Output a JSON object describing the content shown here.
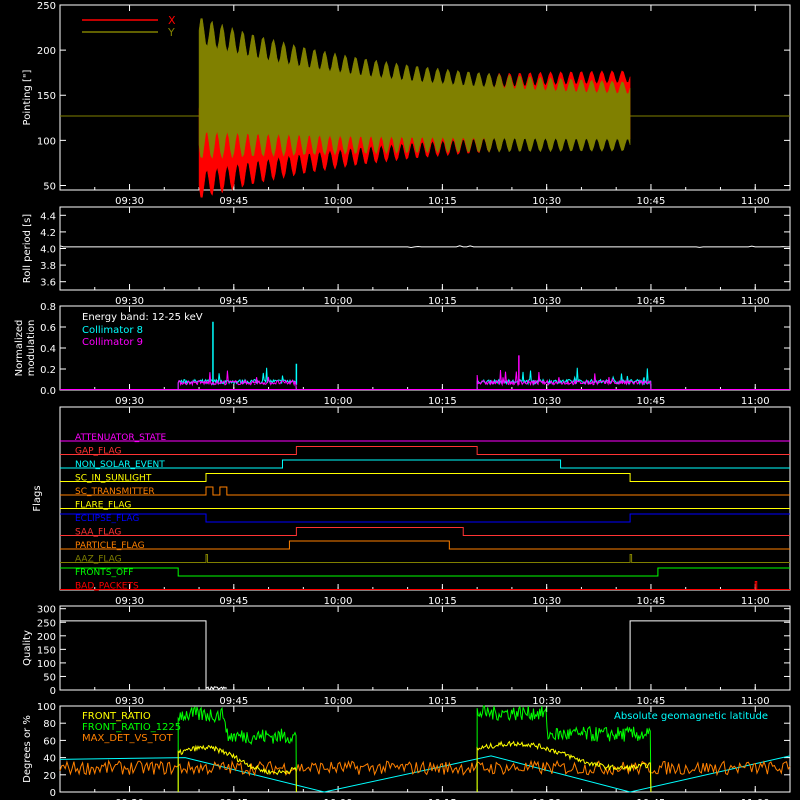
{
  "colors": {
    "background": "#000000",
    "frame": "#ffffff",
    "x_pointing": "#ff0000",
    "y_pointing": "#808000",
    "coll8": "#00ffff",
    "coll9": "#ff00ff"
  },
  "time_axis": {
    "range": [
      "09:20",
      "11:05"
    ],
    "tick_labels": [
      "09:30",
      "09:45",
      "10:00",
      "10:15",
      "10:30",
      "10:45",
      "11:00"
    ],
    "tick_values": [
      "09:30",
      "09:45",
      "10:00",
      "10:15",
      "10:30",
      "10:45",
      "11:00"
    ]
  },
  "chart_data": [
    {
      "id": "pointing",
      "type": "line",
      "ylabel": "Pointing [\"]",
      "ylim": [
        45,
        250
      ],
      "yticks": [
        "50",
        "100",
        "150",
        "200",
        "250"
      ],
      "ytick_values": [
        50,
        100,
        150,
        200,
        250
      ],
      "legend": [
        {
          "name": "X",
          "color": "#ff0000"
        },
        {
          "name": "Y",
          "color": "#808000"
        }
      ],
      "baseline": {
        "value": 127,
        "color": "#808000"
      },
      "series": [
        {
          "name": "X",
          "color": "#ff0000",
          "start": "09:40",
          "end": "10:42",
          "envelope_low_start": 50,
          "envelope_high_start": 135,
          "envelope_low_end": 108,
          "envelope_high_end": 175
        },
        {
          "name": "Y",
          "color": "#808000",
          "start": "09:40",
          "end": "10:42",
          "envelope_low_start": 95,
          "envelope_high_start": 222,
          "envelope_low_end": 95,
          "envelope_high_end": 150
        }
      ]
    },
    {
      "id": "roll",
      "type": "line",
      "ylabel": "Roll period [s]",
      "ylim": [
        3.5,
        4.5
      ],
      "yticks": [
        "3.6",
        "3.8",
        "4.0",
        "4.2",
        "4.4"
      ],
      "ytick_values": [
        3.6,
        3.8,
        4.0,
        4.2,
        4.4
      ],
      "series": [
        {
          "name": "Roll period",
          "color": "#ffffff",
          "x": [
            "09:20",
            "11:05"
          ],
          "y": [
            4.02,
            4.02
          ]
        }
      ]
    },
    {
      "id": "modulation",
      "type": "line",
      "ylabel": "Normalized modulation",
      "ylim": [
        0,
        0.8
      ],
      "yticks": [
        "0.0",
        "0.2",
        "0.4",
        "0.6",
        "0.8"
      ],
      "ytick_values": [
        0,
        0.2,
        0.4,
        0.6,
        0.8
      ],
      "annotation": "Energy band: 12-25 keV",
      "legend": [
        {
          "name": "Collimator 8",
          "color": "#00ffff"
        },
        {
          "name": "Collimator 9",
          "color": "#ff00ff"
        }
      ],
      "series": [
        {
          "name": "Collimator 8",
          "color": "#00ffff",
          "segments": [
            [
              "09:37",
              "09:54"
            ],
            [
              "10:20",
              "10:45"
            ]
          ],
          "typical": 0.08,
          "spikes": [
            {
              "x": "09:42",
              "y": 0.65
            },
            {
              "x": "09:54",
              "y": 0.25
            },
            {
              "x": "10:44",
              "y": 0.12
            }
          ]
        },
        {
          "name": "Collimator 9",
          "color": "#ff00ff",
          "segments": [
            [
              "09:37",
              "09:54"
            ],
            [
              "10:20",
              "10:45"
            ]
          ],
          "typical": 0.07,
          "spikes": [
            {
              "x": "10:26",
              "y": 0.33
            },
            {
              "x": "09:48",
              "y": 0.06
            }
          ]
        }
      ]
    },
    {
      "id": "flags",
      "type": "line",
      "ylabel": "Flags",
      "flags": [
        {
          "name": "ATTENUATOR_STATE",
          "color": "#ff00ff",
          "steps": [
            [
              "09:20",
              0
            ]
          ]
        },
        {
          "name": "GAP_FLAG",
          "color": "#ff3333",
          "steps": [
            [
              "09:20",
              0
            ],
            [
              "09:54",
              1
            ],
            [
              "10:20",
              0
            ]
          ]
        },
        {
          "name": "NON_SOLAR_EVENT",
          "color": "#00ffff",
          "steps": [
            [
              "09:20",
              0
            ],
            [
              "09:52",
              1
            ],
            [
              "10:32",
              0
            ]
          ]
        },
        {
          "name": "SC_IN_SUNLIGHT",
          "color": "#ffff00",
          "steps": [
            [
              "09:20",
              0
            ],
            [
              "09:41",
              1
            ],
            [
              "10:42",
              0
            ]
          ]
        },
        {
          "name": "SC_TRANSMITTER",
          "color": "#ff8000",
          "steps": [
            [
              "09:20",
              0
            ],
            [
              "09:41",
              1
            ],
            [
              "09:42",
              0
            ],
            [
              "09:43",
              1
            ],
            [
              "09:44",
              0
            ]
          ]
        },
        {
          "name": "FLARE_FLAG",
          "color": "#ffff00",
          "steps": [
            [
              "09:20",
              0
            ]
          ]
        },
        {
          "name": "ECLIPSE_FLAG",
          "color": "#0000ff",
          "steps": [
            [
              "09:20",
              1
            ],
            [
              "09:41",
              0
            ],
            [
              "10:42",
              1
            ]
          ]
        },
        {
          "name": "SAA_FLAG",
          "color": "#ff3333",
          "steps": [
            [
              "09:20",
              0
            ],
            [
              "09:54",
              1
            ],
            [
              "10:18",
              0
            ]
          ]
        },
        {
          "name": "PARTICLE_FLAG",
          "color": "#ff8000",
          "steps": [
            [
              "09:20",
              0
            ],
            [
              "09:53",
              1
            ],
            [
              "10:16",
              0
            ]
          ]
        },
        {
          "name": "AAZ_FLAG",
          "color": "#808000",
          "pulses": [
            "09:41",
            "10:42"
          ]
        },
        {
          "name": "FRONTS_OFF",
          "color": "#00ff00",
          "steps": [
            [
              "09:20",
              1
            ],
            [
              "09:37",
              0
            ],
            [
              "10:46",
              1
            ]
          ]
        },
        {
          "name": "BAD_PACKETS",
          "color": "#ff0000",
          "pulses": [
            "11:00"
          ]
        }
      ]
    },
    {
      "id": "quality",
      "type": "line",
      "ylabel": "Quality",
      "ylim": [
        0,
        310
      ],
      "yticks": [
        "0",
        "50",
        "100",
        "150",
        "200",
        "250",
        "300"
      ],
      "ytick_values": [
        0,
        50,
        100,
        150,
        200,
        250,
        300
      ],
      "series": [
        {
          "name": "Quality",
          "color": "#ffffff",
          "x": [
            "09:20",
            "09:41",
            "09:41",
            "10:42",
            "10:42",
            "11:05"
          ],
          "y": [
            255,
            255,
            0,
            0,
            255,
            255
          ]
        }
      ]
    },
    {
      "id": "ratios",
      "type": "line",
      "ylabel": "Degrees or %",
      "ylim": [
        0,
        100
      ],
      "yticks": [
        "0",
        "20",
        "40",
        "60",
        "80",
        "100"
      ],
      "ytick_values": [
        0,
        20,
        40,
        60,
        80,
        100
      ],
      "legend": [
        {
          "name": "FRONT_RATIO",
          "color": "#ffff00"
        },
        {
          "name": "FRONT_RATIO_1225",
          "color": "#00ff00"
        },
        {
          "name": "MAX_DET_VS_TOT",
          "color": "#ff8000"
        }
      ],
      "annotation": "Absolute geomagnetic latitude",
      "annotation_color": "#00ffff",
      "series": [
        {
          "name": "FRONT_RATIO",
          "color": "#ffff00",
          "segments": [
            [
              "09:37",
              "09:54"
            ],
            [
              "10:20",
              "10:45"
            ]
          ],
          "levels": [
            45,
            50
          ]
        },
        {
          "name": "FRONT_RATIO_1225",
          "color": "#00ff00",
          "segments": [
            [
              "09:37",
              "09:54"
            ],
            [
              "10:20",
              "10:45"
            ]
          ],
          "levels": [
            90,
            92
          ]
        },
        {
          "name": "MAX_DET_VS_TOT",
          "color": "#ff8000",
          "range": [
            "09:20",
            "11:05"
          ],
          "level": 28
        },
        {
          "name": "Absolute geomagnetic latitude",
          "color": "#00ffff",
          "x": [
            "09:20",
            "09:38",
            "09:58",
            "10:22",
            "10:42",
            "11:05"
          ],
          "y": [
            38,
            40,
            0,
            42,
            0,
            42
          ]
        }
      ]
    }
  ]
}
